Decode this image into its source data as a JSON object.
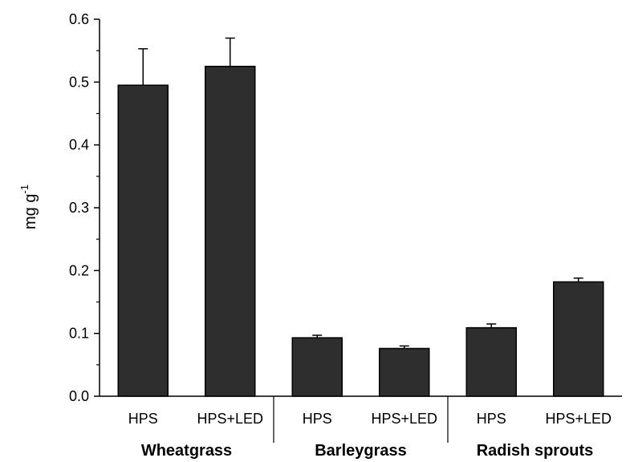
{
  "chart_data": {
    "type": "bar",
    "title": "",
    "xlabel": "",
    "ylabel": "mg g",
    "ylabel_superscript": "-1",
    "ylim": [
      0,
      0.6
    ],
    "yticks": [
      "0.0",
      "0.1",
      "0.2",
      "0.3",
      "0.4",
      "0.5",
      "0.6"
    ],
    "categories": [
      "HPS",
      "HPS+LED",
      "HPS",
      "HPS+LED",
      "HPS",
      "HPS+LED"
    ],
    "groups": [
      {
        "label": "Wheatgrass",
        "category_indices": [
          0,
          1
        ]
      },
      {
        "label": "Barleygrass",
        "category_indices": [
          2,
          3
        ]
      },
      {
        "label": "Radish sprouts",
        "category_indices": [
          4,
          5
        ]
      }
    ],
    "values": [
      0.495,
      0.525,
      0.093,
      0.076,
      0.109,
      0.182
    ],
    "errors": [
      0.058,
      0.045,
      0.004,
      0.004,
      0.006,
      0.006
    ],
    "bar_color": "#2e2e2e",
    "grid": false,
    "legend": "none"
  }
}
